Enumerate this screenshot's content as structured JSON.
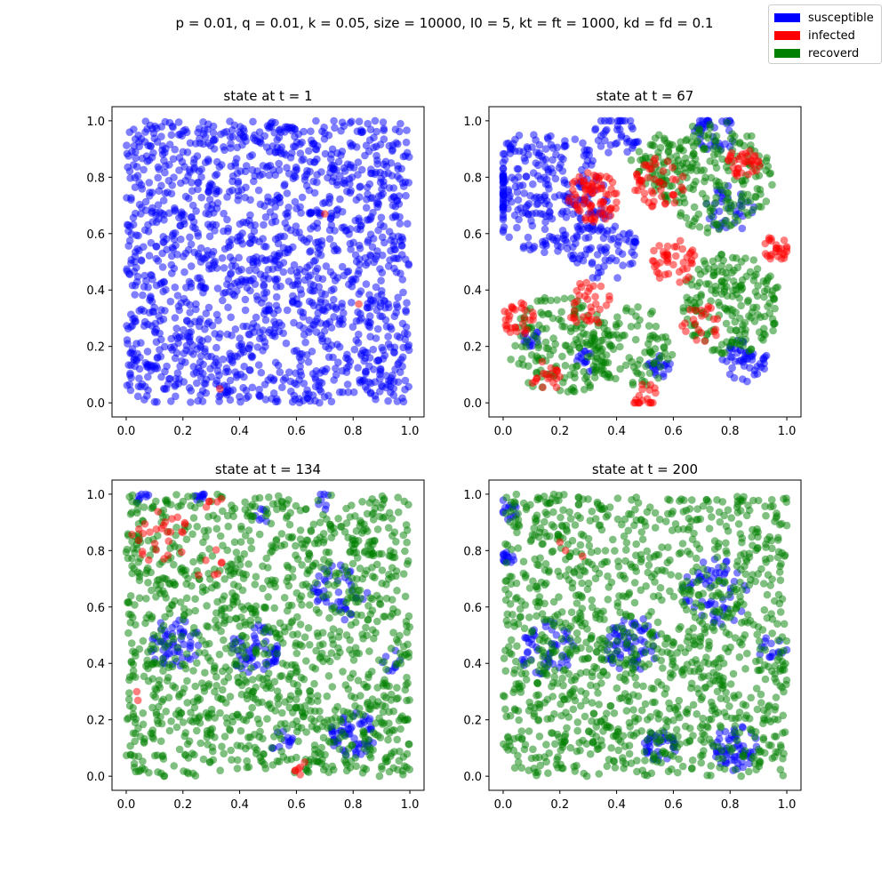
{
  "figure": {
    "suptitle": "p = 0.01, q = 0.01, k = 0.05, size = 10000, I0 = 5, kt = ft = 1000, kd = fd = 0.1"
  },
  "legend": {
    "placement": "top-right",
    "items": [
      {
        "label": "susceptible",
        "color": "#0000ff"
      },
      {
        "label": "infected",
        "color": "#ff0000"
      },
      {
        "label": "recoverd",
        "color": "#008000"
      }
    ]
  },
  "colors": {
    "susceptible": "#0000ff",
    "infected": "#ff0000",
    "recovered": "#008000"
  },
  "chart_data": [
    {
      "type": "scatter",
      "title": "state at t = 1",
      "xlim": [
        -0.05,
        1.05
      ],
      "ylim": [
        -0.05,
        1.05
      ],
      "xticks": [
        "0.0",
        "0.2",
        "0.4",
        "0.6",
        "0.8",
        "1.0"
      ],
      "yticks": [
        "0.0",
        "0.2",
        "0.4",
        "0.6",
        "0.8",
        "1.0"
      ],
      "grid": false,
      "fractions": {
        "susceptible": 0.9995,
        "infected": 0.0005,
        "recovered": 0.0
      },
      "susceptible_regions": [
        {
          "cx": 0.5,
          "cy": 0.5,
          "r": 1.0,
          "w": 1
        }
      ],
      "infected_points": [
        [
          0.7,
          0.67
        ],
        [
          0.82,
          0.35
        ],
        [
          0.33,
          0.05
        ]
      ]
    },
    {
      "type": "scatter",
      "title": "state at t = 67",
      "xlim": [
        -0.05,
        1.05
      ],
      "ylim": [
        -0.05,
        1.05
      ],
      "xticks": [
        "0.0",
        "0.2",
        "0.4",
        "0.6",
        "0.8",
        "1.0"
      ],
      "yticks": [
        "0.0",
        "0.2",
        "0.4",
        "0.6",
        "0.8",
        "1.0"
      ],
      "grid": false,
      "fractions": {
        "susceptible": 0.35,
        "infected": 0.22,
        "recovered": 0.43
      },
      "susceptible_regions": [
        {
          "cx": 0.15,
          "cy": 0.75,
          "r": 0.22,
          "w": 6
        },
        {
          "cx": 0.35,
          "cy": 0.55,
          "r": 0.12,
          "w": 2
        },
        {
          "cx": 0.4,
          "cy": 0.95,
          "r": 0.08,
          "w": 1
        },
        {
          "cx": 0.75,
          "cy": 0.97,
          "r": 0.08,
          "w": 1
        },
        {
          "cx": 0.8,
          "cy": 0.68,
          "r": 0.09,
          "w": 1
        },
        {
          "cx": 0.85,
          "cy": 0.15,
          "r": 0.08,
          "w": 1
        },
        {
          "cx": 0.55,
          "cy": 0.13,
          "r": 0.04,
          "w": 0.4
        },
        {
          "cx": 0.3,
          "cy": 0.15,
          "r": 0.04,
          "w": 0.4
        },
        {
          "cx": 0.1,
          "cy": 0.23,
          "r": 0.03,
          "w": 0.3
        }
      ],
      "infected_regions": [
        {
          "cx": 0.32,
          "cy": 0.73,
          "r": 0.09,
          "w": 2
        },
        {
          "cx": 0.55,
          "cy": 0.78,
          "r": 0.09,
          "w": 1.5
        },
        {
          "cx": 0.6,
          "cy": 0.5,
          "r": 0.08,
          "w": 1.5
        },
        {
          "cx": 0.05,
          "cy": 0.3,
          "r": 0.06,
          "w": 1
        },
        {
          "cx": 0.3,
          "cy": 0.35,
          "r": 0.08,
          "w": 1
        },
        {
          "cx": 0.15,
          "cy": 0.1,
          "r": 0.06,
          "w": 1
        },
        {
          "cx": 0.7,
          "cy": 0.28,
          "r": 0.07,
          "w": 1
        },
        {
          "cx": 0.97,
          "cy": 0.55,
          "r": 0.05,
          "w": 1
        },
        {
          "cx": 0.85,
          "cy": 0.85,
          "r": 0.06,
          "w": 1
        },
        {
          "cx": 0.5,
          "cy": 0.02,
          "r": 0.05,
          "w": 0.6
        }
      ],
      "recovered_regions": [
        {
          "cx": 0.75,
          "cy": 0.8,
          "r": 0.2,
          "w": 3
        },
        {
          "cx": 0.8,
          "cy": 0.35,
          "r": 0.18,
          "w": 3
        },
        {
          "cx": 0.2,
          "cy": 0.2,
          "r": 0.18,
          "w": 3
        },
        {
          "cx": 0.45,
          "cy": 0.2,
          "r": 0.15,
          "w": 2
        },
        {
          "cx": 0.55,
          "cy": 0.85,
          "r": 0.1,
          "w": 1
        }
      ]
    },
    {
      "type": "scatter",
      "title": "state at t = 134",
      "xlim": [
        -0.05,
        1.05
      ],
      "ylim": [
        -0.05,
        1.05
      ],
      "xticks": [
        "0.0",
        "0.2",
        "0.4",
        "0.6",
        "0.8",
        "1.0"
      ],
      "yticks": [
        "0.0",
        "0.2",
        "0.4",
        "0.6",
        "0.8",
        "1.0"
      ],
      "grid": false,
      "fractions": {
        "susceptible": 0.17,
        "infected": 0.03,
        "recovered": 0.8
      },
      "susceptible_regions": [
        {
          "cx": 0.17,
          "cy": 0.47,
          "r": 0.09,
          "w": 2
        },
        {
          "cx": 0.45,
          "cy": 0.45,
          "r": 0.09,
          "w": 2
        },
        {
          "cx": 0.8,
          "cy": 0.15,
          "r": 0.08,
          "w": 2
        },
        {
          "cx": 0.75,
          "cy": 0.65,
          "r": 0.1,
          "w": 1.5
        },
        {
          "cx": 0.93,
          "cy": 0.42,
          "r": 0.05,
          "w": 0.6
        },
        {
          "cx": 0.55,
          "cy": 0.12,
          "r": 0.04,
          "w": 0.6
        },
        {
          "cx": 0.05,
          "cy": 0.99,
          "r": 0.03,
          "w": 0.4
        },
        {
          "cx": 0.26,
          "cy": 0.99,
          "r": 0.02,
          "w": 0.3
        },
        {
          "cx": 0.48,
          "cy": 0.93,
          "r": 0.03,
          "w": 0.3
        },
        {
          "cx": 0.7,
          "cy": 0.97,
          "r": 0.04,
          "w": 0.4
        }
      ],
      "infected_regions": [
        {
          "cx": 0.12,
          "cy": 0.85,
          "r": 0.1,
          "w": 2
        },
        {
          "cx": 0.3,
          "cy": 0.75,
          "r": 0.06,
          "w": 1
        },
        {
          "cx": 0.02,
          "cy": 0.28,
          "r": 0.03,
          "w": 0.5
        },
        {
          "cx": 0.3,
          "cy": 0.99,
          "r": 0.04,
          "w": 0.5
        },
        {
          "cx": 0.62,
          "cy": 0.03,
          "r": 0.03,
          "w": 0.4
        }
      ],
      "recovered_regions": [
        {
          "cx": 0.5,
          "cy": 0.5,
          "r": 1.0,
          "w": 1
        }
      ]
    },
    {
      "type": "scatter",
      "title": "state at t = 200",
      "xlim": [
        -0.05,
        1.05
      ],
      "ylim": [
        -0.05,
        1.05
      ],
      "xticks": [
        "0.0",
        "0.2",
        "0.4",
        "0.6",
        "0.8",
        "1.0"
      ],
      "yticks": [
        "0.0",
        "0.2",
        "0.4",
        "0.6",
        "0.8",
        "1.0"
      ],
      "grid": false,
      "fractions": {
        "susceptible": 0.2,
        "infected": 0.003,
        "recovered": 0.797
      },
      "susceptible_regions": [
        {
          "cx": 0.15,
          "cy": 0.45,
          "r": 0.1,
          "w": 2
        },
        {
          "cx": 0.45,
          "cy": 0.47,
          "r": 0.1,
          "w": 2
        },
        {
          "cx": 0.82,
          "cy": 0.1,
          "r": 0.08,
          "w": 1.5
        },
        {
          "cx": 0.75,
          "cy": 0.65,
          "r": 0.12,
          "w": 2
        },
        {
          "cx": 0.55,
          "cy": 0.1,
          "r": 0.06,
          "w": 1
        },
        {
          "cx": 0.02,
          "cy": 0.95,
          "r": 0.04,
          "w": 0.5
        },
        {
          "cx": 0.02,
          "cy": 0.78,
          "r": 0.03,
          "w": 0.4
        },
        {
          "cx": 0.95,
          "cy": 0.45,
          "r": 0.06,
          "w": 0.6
        }
      ],
      "infected_points": [
        [
          0.2,
          0.83
        ],
        [
          0.22,
          0.8
        ],
        [
          0.28,
          0.78
        ]
      ],
      "recovered_regions": [
        {
          "cx": 0.5,
          "cy": 0.5,
          "r": 1.0,
          "w": 1
        }
      ]
    }
  ]
}
